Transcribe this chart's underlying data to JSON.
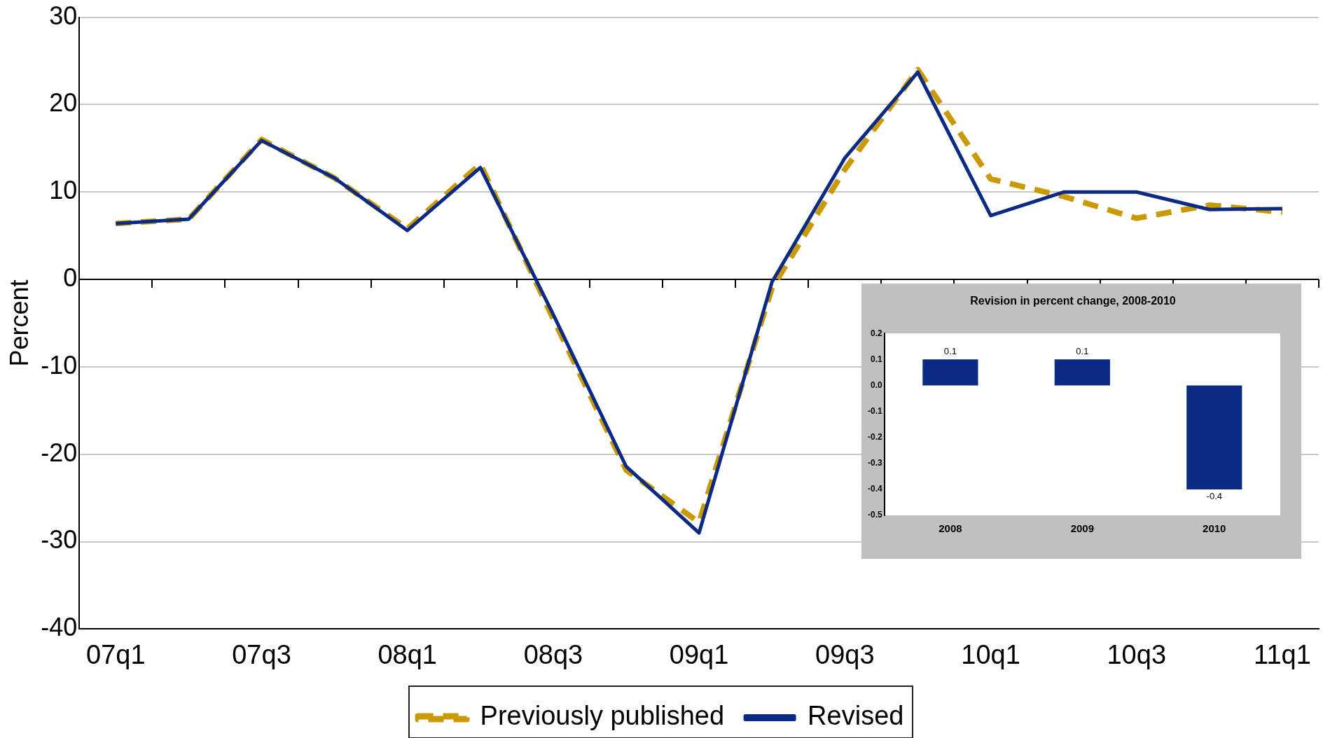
{
  "chart_data": [
    {
      "type": "line",
      "ylabel": "Percent",
      "categories": [
        "07q1",
        null,
        "07q3",
        null,
        "08q1",
        null,
        "08q3",
        null,
        "09q1",
        null,
        "09q3",
        null,
        "10q1",
        null,
        "10q3",
        null,
        "11q1"
      ],
      "series": [
        {
          "name": "Previously published",
          "color": "#c99a06",
          "line_style": "dashed",
          "values": [
            6.4,
            6.9,
            16,
            11.6,
            5.8,
            13.2,
            -4.5,
            -21.8,
            -27.8,
            -1,
            12.6,
            24,
            11.5,
            9.5,
            7,
            8.5,
            7.7
          ]
        },
        {
          "name": "Revised",
          "color": "#0a2a84",
          "line_style": "solid",
          "values": [
            6.4,
            6.9,
            15.9,
            11.6,
            5.6,
            12.8,
            -4,
            -21.4,
            -29,
            -0.3,
            13.9,
            23.7,
            7.3,
            10,
            10,
            8,
            8.1
          ]
        }
      ],
      "ylim": [
        -40,
        30
      ],
      "yticks": [
        -40,
        -30,
        -20,
        -10,
        0,
        10,
        20,
        30
      ],
      "grid": "y",
      "legend": "bottom",
      "marker": "none"
    },
    {
      "type": "bar",
      "title": "Revision in percent change, 2008-2010",
      "categories": [
        "2008",
        "2009",
        "2010"
      ],
      "values": [
        0.1,
        0.1,
        -0.4
      ],
      "color": "#0a2a84",
      "ylim": [
        -0.5,
        0.2
      ],
      "yticks": [
        {
          "value": -0.5,
          "label": "-0.5"
        },
        {
          "value": -0.4,
          "label": "-0.4"
        },
        {
          "value": -0.3,
          "label": "-0.3"
        },
        {
          "value": -0.2,
          "label": "-0.2"
        },
        {
          "value": -0.1,
          "label": "-0.1"
        },
        {
          "value": 0,
          "label": "0.0"
        },
        {
          "value": 0.1,
          "label": "0.1"
        },
        {
          "value": 0.2,
          "label": "0.2"
        }
      ],
      "data_labels": true,
      "grid": false,
      "legend": false
    }
  ]
}
